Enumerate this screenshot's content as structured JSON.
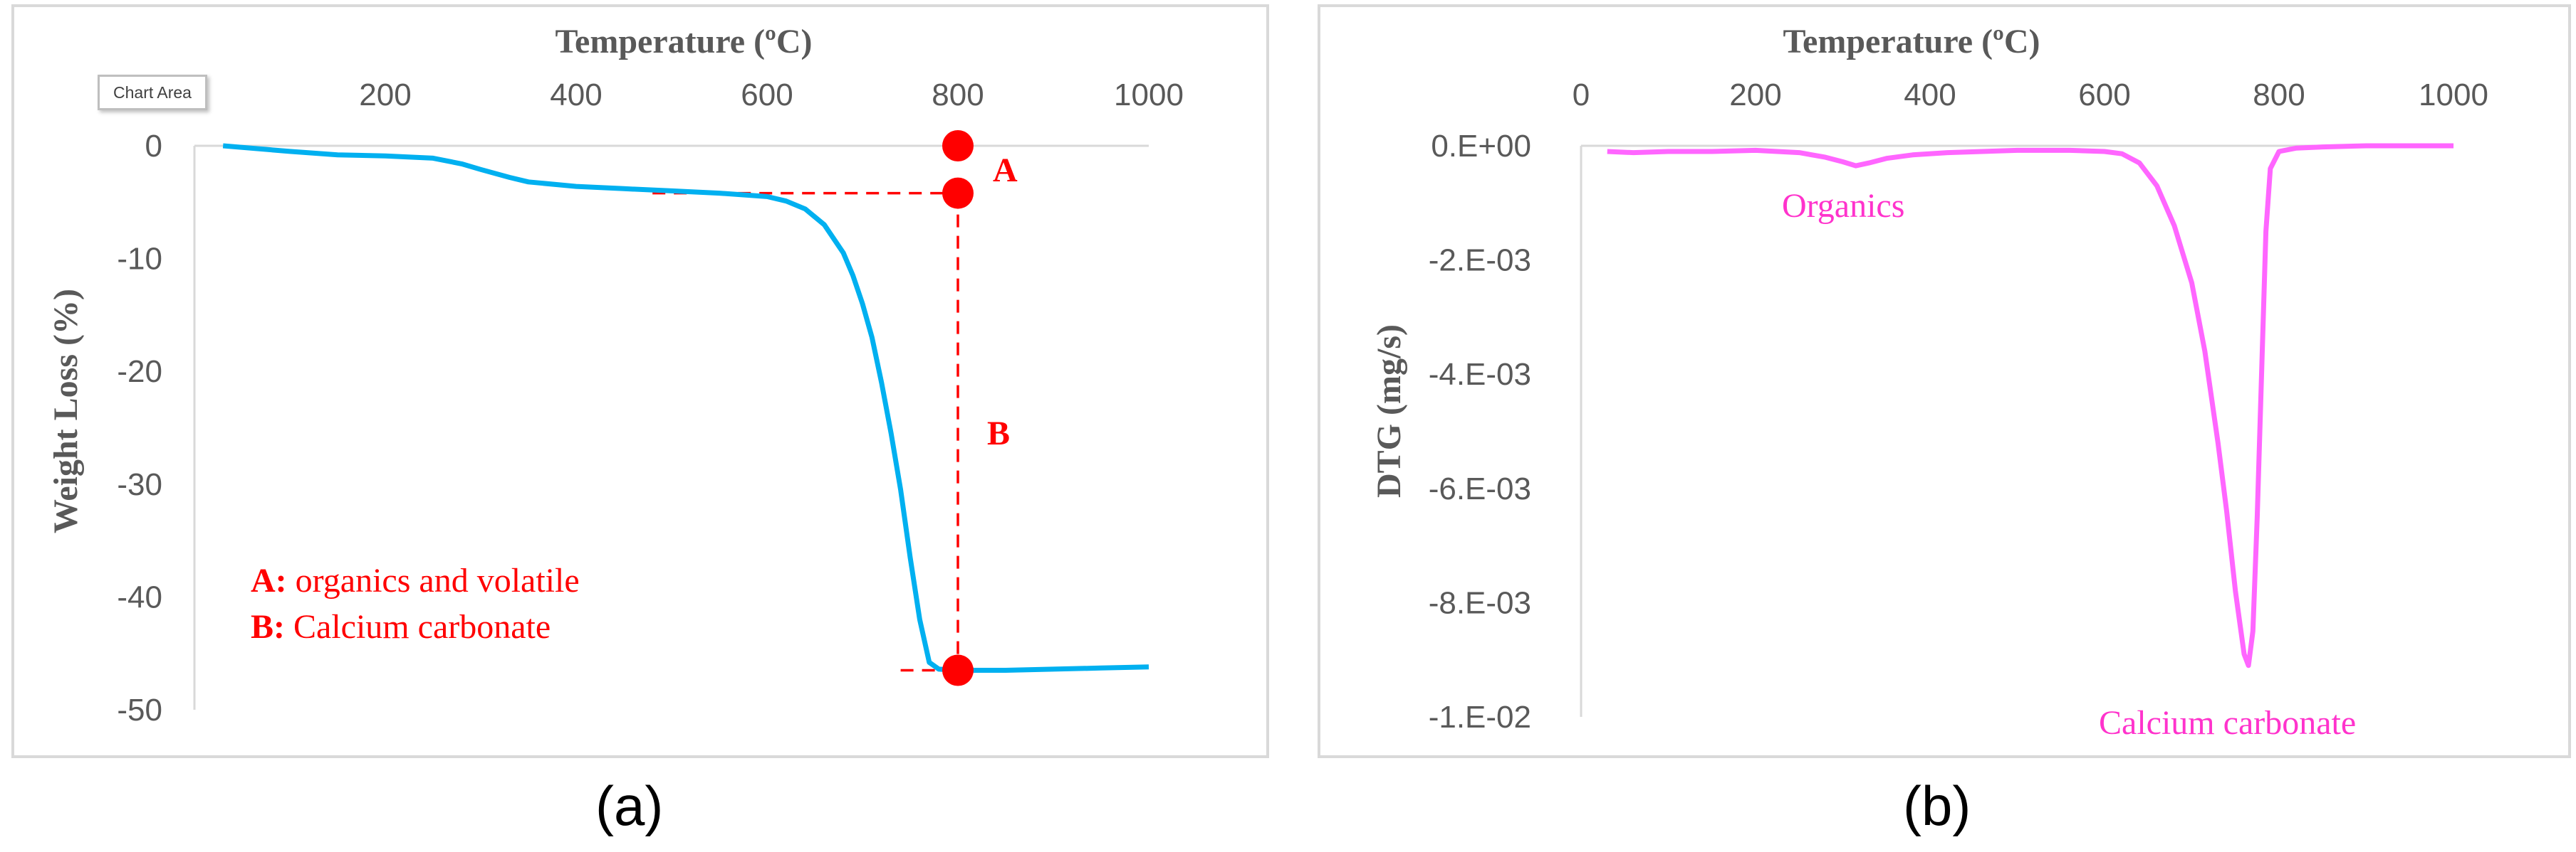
{
  "chart_data": [
    {
      "id": "a",
      "type": "line",
      "caption": "(a)",
      "xlabel": "Temperature (ºC)",
      "ylabel": "Weight Loss (%)",
      "xlim": [
        0,
        1000
      ],
      "ylim": [
        -50,
        0
      ],
      "x_ticks": [
        "200",
        "400",
        "600",
        "800",
        "1000"
      ],
      "x_tick_values": [
        200,
        400,
        600,
        800,
        1000
      ],
      "y_ticks": [
        "0",
        "-10",
        "-20",
        "-30",
        "-40",
        "-50"
      ],
      "y_tick_values": [
        0,
        -10,
        -20,
        -30,
        -40,
        -50
      ],
      "x_axis_position": "top",
      "tooltip": "Chart Area",
      "series": [
        {
          "color": "#00b0f0",
          "x": [
            30,
            100,
            150,
            200,
            250,
            280,
            300,
            330,
            350,
            400,
            450,
            500,
            550,
            600,
            620,
            640,
            660,
            680,
            690,
            700,
            710,
            720,
            730,
            740,
            750,
            760,
            770,
            780,
            800,
            850,
            900,
            950,
            1000
          ],
          "y": [
            0,
            -0.5,
            -0.8,
            -0.9,
            -1.1,
            -1.6,
            -2.1,
            -2.8,
            -3.2,
            -3.6,
            -3.8,
            -4.0,
            -4.2,
            -4.5,
            -4.9,
            -5.6,
            -7.0,
            -9.5,
            -11.5,
            -14.0,
            -17.0,
            -21.0,
            -25.5,
            -30.5,
            -36.5,
            -42.0,
            -45.8,
            -46.4,
            -46.5,
            -46.5,
            -46.4,
            -46.3,
            -46.2
          ]
        }
      ],
      "markers": [
        {
          "x": 800,
          "y": 0
        },
        {
          "x": 800,
          "y": -4.2
        },
        {
          "x": 800,
          "y": -46.5
        }
      ],
      "guide_lines": [
        {
          "from": [
            480,
            -4.2
          ],
          "to": [
            800,
            -4.2
          ]
        },
        {
          "from": [
            800,
            -4.2
          ],
          "to": [
            800,
            -46.5
          ]
        },
        {
          "from": [
            740,
            -46.5
          ],
          "to": [
            800,
            -46.5
          ]
        }
      ],
      "marker_color": "#ff0000",
      "annotations": {
        "A": "A",
        "B": "B",
        "legend_A_key": "A:",
        "legend_A_text": " organics and volatile",
        "legend_B_key": "B:",
        "legend_B_text": " Calcium carbonate"
      }
    },
    {
      "id": "b",
      "type": "line",
      "caption": "(b)",
      "xlabel": "Temperature (ºC)",
      "ylabel": "DTG  (mg/s)",
      "xlim": [
        0,
        1000
      ],
      "ylim": [
        -0.01,
        0
      ],
      "x_ticks": [
        "0",
        "200",
        "400",
        "600",
        "800",
        "1000"
      ],
      "x_tick_values": [
        0,
        200,
        400,
        600,
        800,
        1000
      ],
      "y_ticks": [
        "0.E+00",
        "-2.E-03",
        "-4.E-03",
        "-6.E-03",
        "-8.E-03",
        "-1.E-02"
      ],
      "y_tick_values": [
        0,
        -0.002,
        -0.004,
        -0.006,
        -0.008,
        -0.01
      ],
      "x_axis_position": "top",
      "series": [
        {
          "color": "#ff66ff",
          "x": [
            30,
            60,
            100,
            150,
            200,
            250,
            280,
            300,
            315,
            330,
            350,
            380,
            420,
            460,
            500,
            560,
            600,
            620,
            640,
            660,
            680,
            700,
            715,
            730,
            740,
            750,
            760,
            765,
            770,
            775,
            780,
            785,
            790,
            800,
            820,
            850,
            900,
            1000
          ],
          "y": [
            -0.0001,
            -0.00012,
            -0.0001,
            -0.0001,
            -8e-05,
            -0.00012,
            -0.0002,
            -0.00028,
            -0.00035,
            -0.0003,
            -0.00022,
            -0.00016,
            -0.00012,
            -0.0001,
            -8e-05,
            -8e-05,
            -0.0001,
            -0.00014,
            -0.0003,
            -0.0007,
            -0.0014,
            -0.0024,
            -0.0036,
            -0.0052,
            -0.0064,
            -0.0078,
            -0.0089,
            -0.0091,
            -0.0085,
            -0.0065,
            -0.004,
            -0.0015,
            -0.0004,
            -0.0001,
            -4e-05,
            -2e-05,
            0,
            0
          ]
        }
      ],
      "annotations": {
        "organics": "Organics",
        "calcium": "Calcium carbonate"
      }
    }
  ]
}
